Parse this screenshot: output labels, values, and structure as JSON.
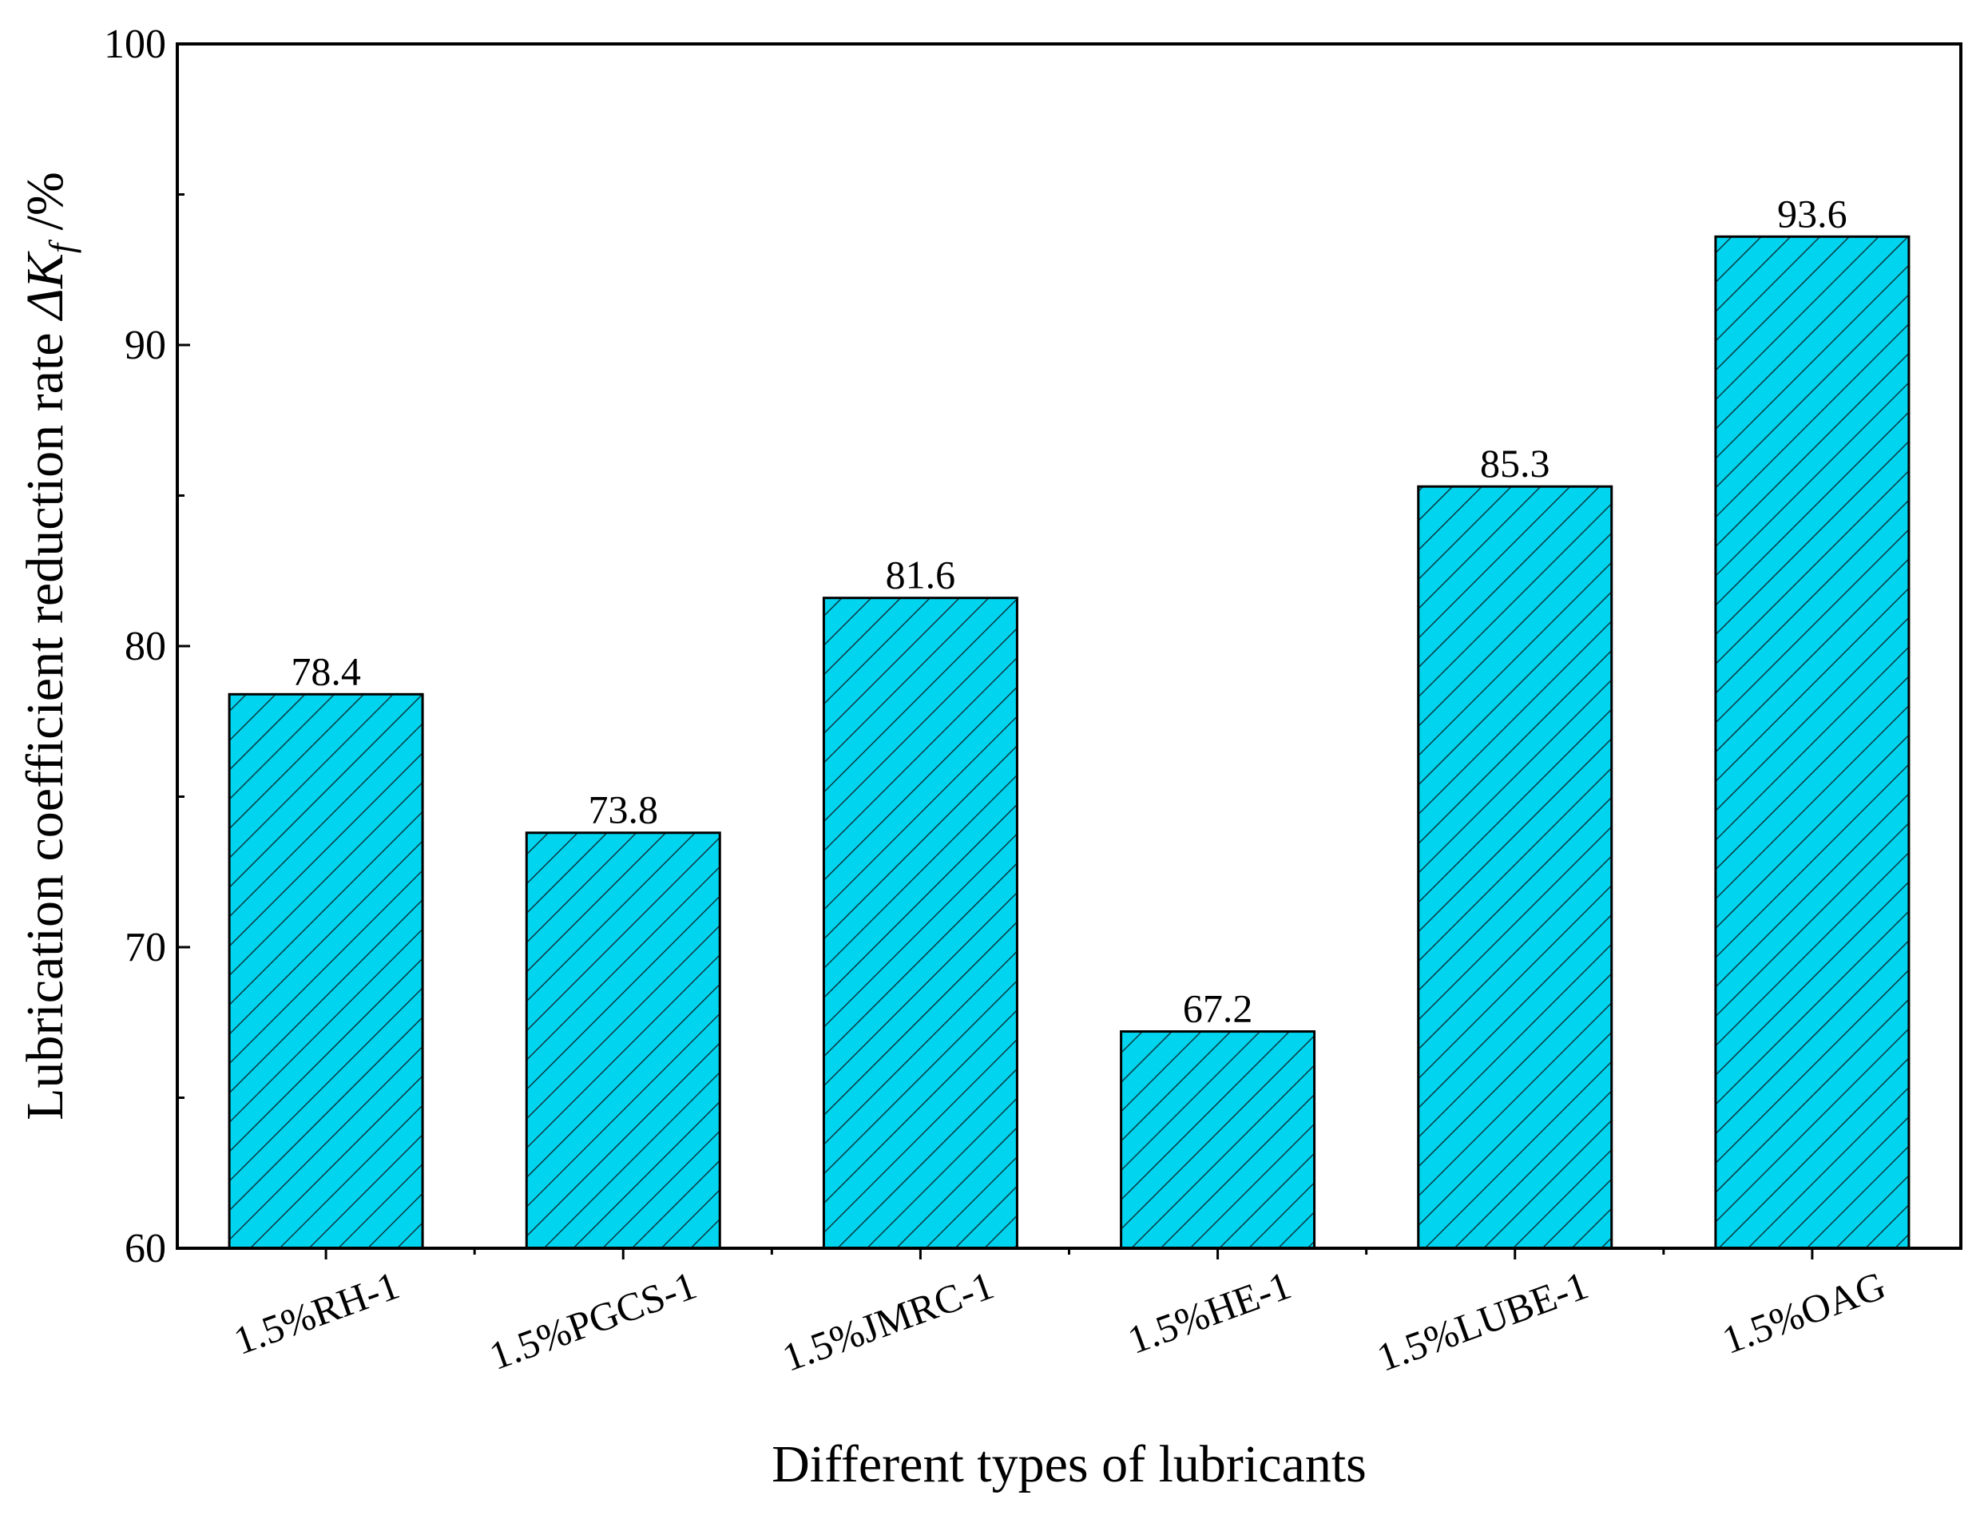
{
  "chart_data": {
    "type": "bar",
    "title": "",
    "xlabel": "Different types of lubricants",
    "ylabel": {
      "main": "Lubrication coefficient reduction rate ",
      "symbol": "ΔK",
      "subscript": "f",
      "unit": " /%"
    },
    "categories": [
      "1.5%RH-1",
      "1.5%PGCS-1",
      "1.5%JMRC-1",
      "1.5%HE-1",
      "1.5%LUBE-1",
      "1.5%OAG"
    ],
    "values": [
      78.4,
      73.8,
      81.6,
      67.2,
      85.3,
      93.6
    ],
    "data_labels": [
      "78.4",
      "73.8",
      "81.6",
      "67.2",
      "85.3",
      "93.6"
    ],
    "ylim": [
      60,
      100
    ],
    "yticks": [
      60,
      70,
      80,
      90,
      100
    ],
    "yticklabels": [
      "60",
      "70",
      "80",
      "90",
      "100"
    ],
    "minor_ytick_step": 5,
    "grid": false,
    "bar_color": "#00D4EE",
    "bar_edge_color": "#000000",
    "hatch": "diagonal"
  }
}
